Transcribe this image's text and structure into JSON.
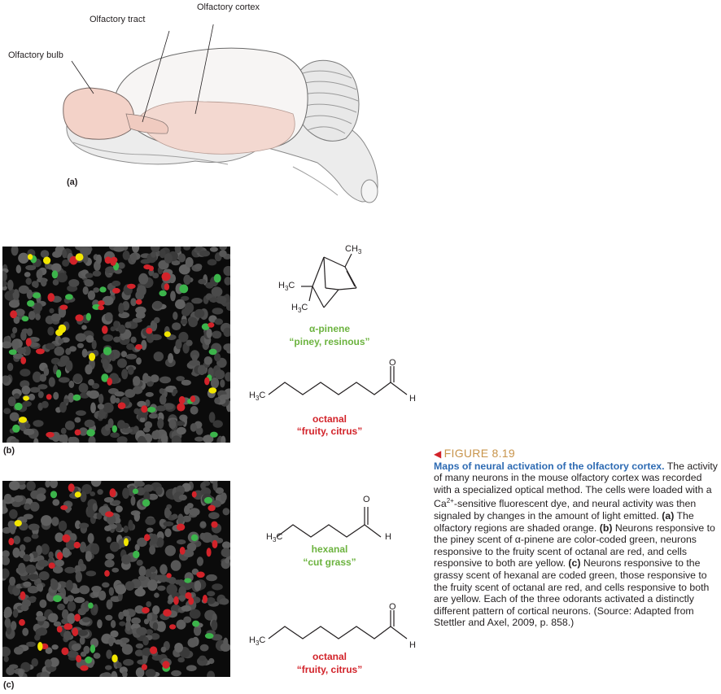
{
  "panel_a": {
    "labels": {
      "olfactory_cortex": "Olfactory cortex",
      "olfactory_tract": "Olfactory tract",
      "olfactory_bulb": "Olfactory bulb"
    },
    "letter": "(a)"
  },
  "panel_b": {
    "letter": "(b)",
    "molecule1": {
      "name": "α-pinene",
      "descriptor": "“piney, resinous”",
      "groups": [
        "CH3",
        "H3C",
        "H3C"
      ]
    },
    "molecule2": {
      "name": "octanal",
      "descriptor": "“fruity, citrus”",
      "groups": [
        "H3C",
        "O",
        "H"
      ]
    }
  },
  "panel_c": {
    "letter": "(c)",
    "molecule1": {
      "name": "hexanal",
      "descriptor": "“cut grass”",
      "groups": [
        "H3C",
        "O",
        "H"
      ]
    },
    "molecule2": {
      "name": "octanal",
      "descriptor": "“fruity, citrus”",
      "groups": [
        "H3C",
        "O",
        "H"
      ]
    }
  },
  "caption": {
    "figure_number": "FIGURE 8.19",
    "heading": "Maps of neural activation of the olfactory cortex.",
    "body_1": " The activity of many neurons in the mouse olfactory cortex was recorded with a specialized optical method. The cells were loaded with a Ca",
    "superscript": "2+",
    "body_2": "-sensitive fluorescent dye, and neural activity was then signaled by changes in the amount of light emitted. ",
    "a_label": "(a)",
    "a_text": " The olfactory regions are shaded orange. ",
    "b_label": "(b)",
    "b_text": " Neurons responsive to the piney scent of α-pinene are color-coded green, neurons responsive to the fruity scent of octanal are red, and cells responsive to both are yellow. ",
    "c_label": "(c)",
    "c_text": " Neurons responsive to the grassy scent of hexanal are coded green, those responsive to the fruity scent of octanal are red, and cells responsive to both are yellow. Each of the three odorants activated a distinctly different pattern of cortical neurons. (Source: Adapted from Stettler and Axel, 2009, p. 858.)"
  },
  "colors": {
    "green_label": "#6cb33f",
    "red_label": "#d2232a",
    "figure_number": "#c8944b",
    "heading": "#2e6bb3",
    "bulb_fill": "#f3d2c8"
  }
}
